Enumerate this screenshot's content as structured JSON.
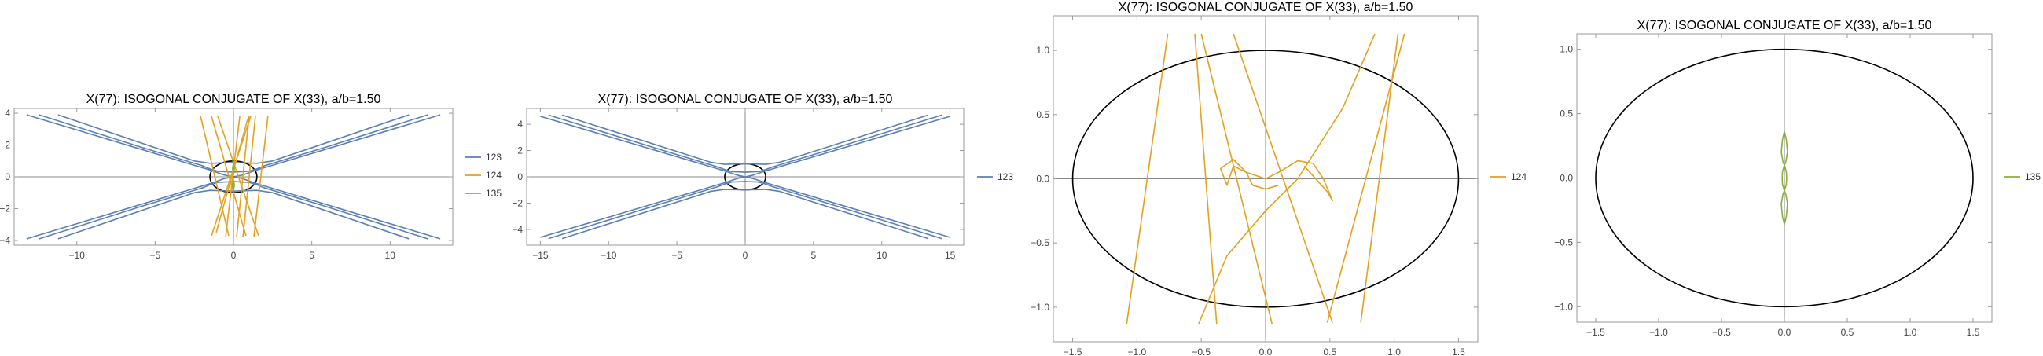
{
  "colors": {
    "s123": "#5b7fb5",
    "s124": "#e3a11f",
    "s135": "#8cb13a",
    "ellipse": "#000000"
  },
  "chart_data": [
    {
      "type": "line",
      "title": "X(77): ISOGONAL CONJUGATE OF X(33), a/b=1.50",
      "xlim": [
        -14,
        14
      ],
      "ylim": [
        -4.3,
        4.3
      ],
      "xticks": [
        -10,
        -5,
        0,
        5,
        10
      ],
      "yticks": [
        -4,
        -2,
        0,
        2,
        4
      ],
      "legend": [
        "123",
        "124",
        "135"
      ],
      "legend_position": "right",
      "ellipse": {
        "a": 1.5,
        "b": 1
      },
      "series": [
        {
          "name": "123",
          "color": "#5b7fb5",
          "curves": [
            [
              [
                -12.4,
                3.9
              ],
              [
                -6,
                1.9
              ],
              [
                -2,
                0.7
              ],
              [
                -1.5,
                0.5
              ],
              [
                -1,
                0.35
              ],
              [
                0,
                0.3
              ],
              [
                1,
                0.35
              ],
              [
                1.5,
                0.5
              ],
              [
                2,
                0.7
              ],
              [
                6,
                1.9
              ],
              [
                12.4,
                3.9
              ]
            ],
            [
              [
                -12.4,
                -3.9
              ],
              [
                -6,
                -1.9
              ],
              [
                -2,
                -0.7
              ],
              [
                -1.5,
                -0.5
              ],
              [
                -1,
                -0.35
              ],
              [
                0,
                -0.3
              ],
              [
                1,
                -0.35
              ],
              [
                1.5,
                -0.5
              ],
              [
                2,
                -0.7
              ],
              [
                6,
                -1.9
              ],
              [
                12.4,
                -3.9
              ]
            ],
            [
              [
                -13.2,
                3.9
              ],
              [
                -1.4,
                0.4
              ],
              [
                -0.6,
                0.12
              ],
              [
                0,
                0
              ],
              [
                0.6,
                -0.12
              ],
              [
                1.4,
                -0.4
              ],
              [
                13.2,
                -3.9
              ]
            ],
            [
              [
                -13.2,
                -3.9
              ],
              [
                -1.4,
                -0.4
              ],
              [
                -0.6,
                -0.12
              ],
              [
                0,
                0
              ],
              [
                0.6,
                0.12
              ],
              [
                1.4,
                0.4
              ],
              [
                13.2,
                3.9
              ]
            ],
            [
              [
                -11.2,
                3.9
              ],
              [
                -2.5,
                1.0
              ],
              [
                -1.5,
                0.85
              ],
              [
                0,
                0.9
              ],
              [
                1.5,
                0.85
              ],
              [
                2.5,
                1.0
              ],
              [
                11.2,
                3.9
              ]
            ],
            [
              [
                -11.2,
                -3.9
              ],
              [
                -2.5,
                -1.0
              ],
              [
                -1.5,
                -0.85
              ],
              [
                0,
                -0.9
              ],
              [
                1.5,
                -0.85
              ],
              [
                2.5,
                -1.0
              ],
              [
                11.2,
                -3.9
              ]
            ]
          ]
        },
        {
          "name": "124",
          "color": "#e3a11f",
          "curves": [
            [
              [
                -2.1,
                3.8
              ],
              [
                -0.3,
                -3.7
              ]
            ],
            [
              [
                -1.4,
                3.8
              ],
              [
                0.8,
                -3.7
              ]
            ],
            [
              [
                -1.0,
                3.8
              ],
              [
                1.6,
                -3.7
              ]
            ],
            [
              [
                -0.5,
                -3.8
              ],
              [
                0.4,
                3.8
              ]
            ],
            [
              [
                0.2,
                -3.8
              ],
              [
                1.0,
                3.8
              ]
            ],
            [
              [
                0.6,
                -3.8
              ],
              [
                1.4,
                3.8
              ]
            ],
            [
              [
                -1.4,
                -3.7
              ],
              [
                1.1,
                3.8
              ]
            ],
            [
              [
                1.3,
                -3.8
              ],
              [
                2.2,
                3.8
              ]
            ],
            [
              [
                0.9,
                3.6
              ],
              [
                -1.1,
                -3.5
              ]
            ]
          ]
        },
        {
          "name": "135",
          "color": "#8cb13a",
          "curves": [
            [
              [
                0,
                0.9
              ],
              [
                0.06,
                0.5
              ],
              [
                0,
                0.2
              ],
              [
                -0.06,
                0.5
              ],
              [
                0,
                0.9
              ]
            ],
            [
              [
                0,
                -0.9
              ],
              [
                0.06,
                -0.5
              ],
              [
                0,
                -0.2
              ],
              [
                -0.06,
                -0.5
              ],
              [
                0,
                -0.9
              ]
            ]
          ]
        }
      ]
    },
    {
      "type": "line",
      "title": "X(77): ISOGONAL CONJUGATE OF X(33), a/b=1.50",
      "xlim": [
        -16,
        16
      ],
      "ylim": [
        -5.2,
        5.2
      ],
      "xticks": [
        -15,
        -10,
        -5,
        0,
        5,
        10,
        15
      ],
      "yticks": [
        -4,
        -2,
        0,
        2,
        4
      ],
      "legend": [
        "123"
      ],
      "legend_position": "right",
      "ellipse": {
        "a": 1.5,
        "b": 1
      },
      "series": [
        {
          "name": "123",
          "color": "#5b7fb5",
          "curves": [
            [
              [
                -14.4,
                4.7
              ],
              [
                -6,
                2.0
              ],
              [
                -2,
                0.75
              ],
              [
                -1.5,
                0.55
              ],
              [
                -1,
                0.4
              ],
              [
                0,
                0.35
              ],
              [
                1,
                0.4
              ],
              [
                1.5,
                0.55
              ],
              [
                2,
                0.75
              ],
              [
                6,
                2.0
              ],
              [
                14.4,
                4.7
              ]
            ],
            [
              [
                -14.4,
                -4.7
              ],
              [
                -6,
                -2.0
              ],
              [
                -2,
                -0.75
              ],
              [
                -1.5,
                -0.55
              ],
              [
                -1,
                -0.4
              ],
              [
                0,
                -0.35
              ],
              [
                1,
                -0.4
              ],
              [
                1.5,
                -0.55
              ],
              [
                2,
                -0.75
              ],
              [
                6,
                -2.0
              ],
              [
                14.4,
                -4.7
              ]
            ],
            [
              [
                -15.0,
                4.6
              ],
              [
                -1.4,
                0.42
              ],
              [
                -0.6,
                0.13
              ],
              [
                0,
                0
              ],
              [
                0.6,
                -0.13
              ],
              [
                1.4,
                -0.42
              ],
              [
                15.0,
                -4.6
              ]
            ],
            [
              [
                -15.0,
                -4.6
              ],
              [
                -1.4,
                -0.42
              ],
              [
                -0.6,
                -0.13
              ],
              [
                0,
                0
              ],
              [
                0.6,
                0.13
              ],
              [
                1.4,
                0.42
              ],
              [
                15.0,
                4.6
              ]
            ],
            [
              [
                -13.4,
                4.7
              ],
              [
                -2.5,
                1.1
              ],
              [
                -1.5,
                0.95
              ],
              [
                0,
                1.0
              ],
              [
                1.5,
                0.95
              ],
              [
                2.5,
                1.1
              ],
              [
                13.4,
                4.7
              ]
            ],
            [
              [
                -13.4,
                -4.7
              ],
              [
                -2.5,
                -1.1
              ],
              [
                -1.5,
                -0.95
              ],
              [
                0,
                -1.0
              ],
              [
                1.5,
                -0.95
              ],
              [
                2.5,
                -1.1
              ],
              [
                13.4,
                -4.7
              ]
            ]
          ]
        }
      ]
    },
    {
      "type": "line",
      "title": "X(77): ISOGONAL CONJUGATE OF X(33), a/b=1.50",
      "xlim": [
        -1.65,
        1.65
      ],
      "ylim": [
        -1.27,
        1.27
      ],
      "xticks": [
        -1.5,
        -1.0,
        -0.5,
        0.0,
        0.5,
        1.0,
        1.5
      ],
      "yticks": [
        -1.0,
        -0.5,
        0.0,
        0.5,
        1.0
      ],
      "legend": [
        "124"
      ],
      "legend_position": "right",
      "ellipse": {
        "a": 1.5,
        "b": 1
      },
      "series": [
        {
          "name": "124",
          "color": "#e3a11f",
          "curves": [
            [
              [
                -0.76,
                1.13
              ],
              [
                -1.08,
                -1.13
              ]
            ],
            [
              [
                -0.38,
                -1.13
              ],
              [
                -0.55,
                1.13
              ]
            ],
            [
              [
                -0.25,
                1.13
              ],
              [
                0.52,
                -1.12
              ]
            ],
            [
              [
                0.05,
                -1.13
              ],
              [
                -0.5,
                1.13
              ]
            ],
            [
              [
                0.74,
                -1.12
              ],
              [
                1.03,
                1.13
              ]
            ],
            [
              [
                1.08,
                1.13
              ],
              [
                0.48,
                -1.12
              ]
            ],
            [
              [
                -0.52,
                -1.13
              ],
              [
                -0.3,
                -0.6
              ],
              [
                0.0,
                -0.25
              ],
              [
                0.25,
                0.0
              ],
              [
                0.6,
                0.55
              ],
              [
                0.85,
                1.13
              ]
            ],
            [
              [
                -0.25,
                0.1
              ],
              [
                -0.15,
                0.05
              ],
              [
                0.0,
                0.0
              ],
              [
                0.1,
                0.05
              ],
              [
                0.25,
                0.14
              ],
              [
                0.37,
                0.12
              ],
              [
                0.45,
                0.0
              ],
              [
                0.52,
                -0.17
              ],
              [
                0.48,
                -0.1
              ],
              [
                0.3,
                0.1
              ]
            ],
            [
              [
                -0.25,
                0.1
              ],
              [
                -0.3,
                -0.05
              ],
              [
                -0.35,
                0.08
              ],
              [
                -0.25,
                0.15
              ],
              [
                -0.15,
                0.05
              ],
              [
                -0.1,
                -0.05
              ],
              [
                0.0,
                -0.08
              ],
              [
                0.1,
                -0.05
              ]
            ]
          ]
        }
      ]
    },
    {
      "type": "line",
      "title": "X(77): ISOGONAL CONJUGATE OF X(33), a/b=1.50",
      "xlim": [
        -1.65,
        1.65
      ],
      "ylim": [
        -1.12,
        1.12
      ],
      "xticks": [
        -1.5,
        -1.0,
        -0.5,
        0.0,
        0.5,
        1.0,
        1.5
      ],
      "yticks": [
        -1.0,
        -0.5,
        0.0,
        0.5,
        1.0
      ],
      "legend": [
        "135"
      ],
      "legend_position": "right",
      "ellipse": {
        "a": 1.5,
        "b": 1
      },
      "series": [
        {
          "name": "135",
          "color": "#8cb13a",
          "curves": [
            [
              [
                0,
                0.36
              ],
              [
                0.015,
                0.3
              ],
              [
                0.025,
                0.2
              ],
              [
                0.01,
                0.12
              ],
              [
                0,
                0.1
              ],
              [
                -0.01,
                0.12
              ],
              [
                -0.025,
                0.2
              ],
              [
                -0.015,
                0.3
              ],
              [
                0,
                0.36
              ]
            ],
            [
              [
                0,
                0.1
              ],
              [
                0.015,
                0.05
              ],
              [
                0.018,
                0.0
              ],
              [
                0.015,
                -0.05
              ],
              [
                0,
                -0.1
              ],
              [
                -0.015,
                -0.05
              ],
              [
                -0.018,
                0.0
              ],
              [
                -0.015,
                0.05
              ],
              [
                0,
                0.1
              ]
            ],
            [
              [
                0,
                -0.36
              ],
              [
                0.015,
                -0.3
              ],
              [
                0.025,
                -0.2
              ],
              [
                0.01,
                -0.12
              ],
              [
                0,
                -0.1
              ],
              [
                -0.01,
                -0.12
              ],
              [
                -0.025,
                -0.2
              ],
              [
                -0.015,
                -0.3
              ],
              [
                0,
                -0.36
              ]
            ]
          ]
        }
      ]
    }
  ]
}
